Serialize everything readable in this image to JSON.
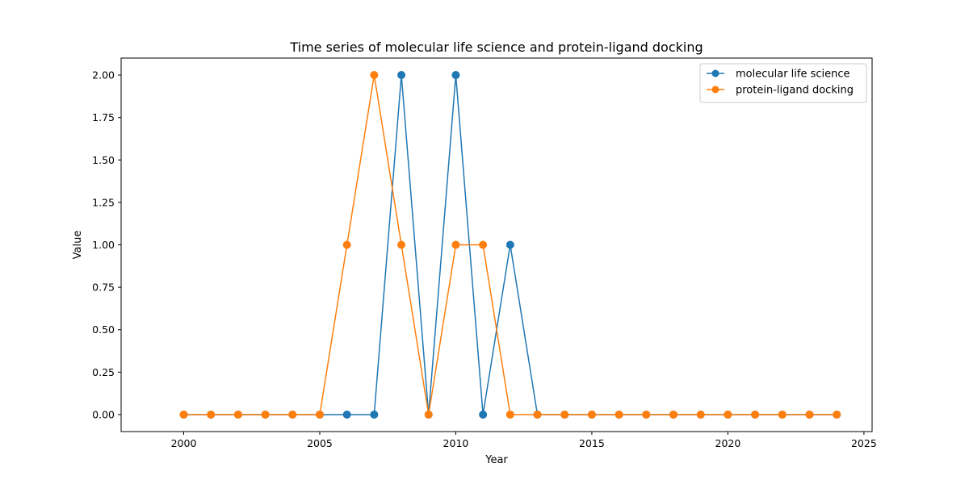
{
  "chart_data": {
    "type": "line",
    "title": "Time series of molecular life science and protein-ligand docking",
    "xlabel": "Year",
    "ylabel": "Value",
    "xlim": [
      1997.7,
      2025.3
    ],
    "ylim": [
      -0.1,
      2.1
    ],
    "xticks": [
      2000,
      2005,
      2010,
      2015,
      2020,
      2025
    ],
    "yticks": [
      0.0,
      0.25,
      0.5,
      0.75,
      1.0,
      1.25,
      1.5,
      1.75,
      2.0
    ],
    "ytick_labels": [
      "0.00",
      "0.25",
      "0.50",
      "0.75",
      "1.00",
      "1.25",
      "1.50",
      "1.75",
      "2.00"
    ],
    "grid": false,
    "legend_position": "top-right",
    "x": [
      2000,
      2001,
      2002,
      2003,
      2004,
      2005,
      2006,
      2007,
      2008,
      2009,
      2010,
      2011,
      2012,
      2013,
      2014,
      2015,
      2016,
      2017,
      2018,
      2019,
      2020,
      2021,
      2022,
      2023,
      2024
    ],
    "series": [
      {
        "name": "molecular life science",
        "color": "#1f77b4",
        "values": [
          0,
          0,
          0,
          0,
          0,
          0,
          0,
          0,
          2,
          0,
          2,
          0,
          1,
          0,
          0,
          0,
          0,
          0,
          0,
          0,
          0,
          0,
          0,
          0,
          0
        ]
      },
      {
        "name": "protein-ligand docking",
        "color": "#ff7f0e",
        "values": [
          0,
          0,
          0,
          0,
          0,
          0,
          1,
          2,
          1,
          0,
          1,
          1,
          0,
          0,
          0,
          0,
          0,
          0,
          0,
          0,
          0,
          0,
          0,
          0,
          0
        ]
      }
    ]
  }
}
